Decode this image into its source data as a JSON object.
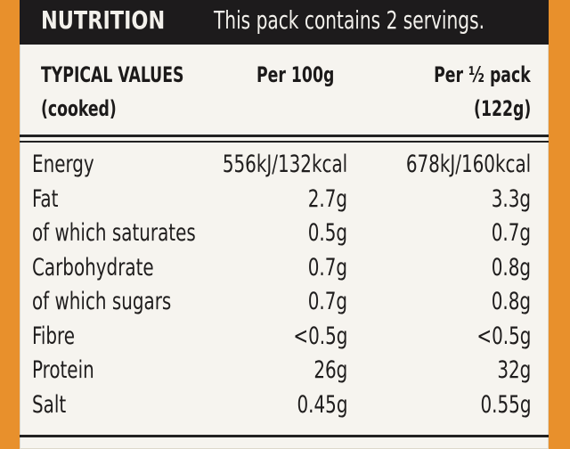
{
  "header": {
    "title": "NUTRITION",
    "note": "This pack contains 2 servings."
  },
  "columns": {
    "typical_line1": "TYPICAL VALUES",
    "typical_line2": "(cooked)",
    "per100": "Per 100g",
    "perpack_line1": "Per ½ pack",
    "perpack_line2": "(122g)"
  },
  "rows": [
    {
      "name": "Energy",
      "per100": "556kJ/132kcal",
      "perpack": "678kJ/160kcal"
    },
    {
      "name": "Fat",
      "per100": "2.7g",
      "perpack": "3.3g"
    },
    {
      "name": "of which saturates",
      "per100": "0.5g",
      "perpack": "0.7g"
    },
    {
      "name": "Carbohydrate",
      "per100": "0.7g",
      "perpack": "0.8g"
    },
    {
      "name": "of which sugars",
      "per100": "0.7g",
      "perpack": "0.8g"
    },
    {
      "name": "Fibre",
      "per100": "<0.5g",
      "perpack": "<0.5g"
    },
    {
      "name": "Protein",
      "per100": "26g",
      "perpack": "32g"
    },
    {
      "name": "Salt",
      "per100": "0.45g",
      "perpack": "0.55g"
    }
  ],
  "colors": {
    "background": "#e8902c",
    "label": "#f6f4ef",
    "header": "#1d1b1c"
  }
}
